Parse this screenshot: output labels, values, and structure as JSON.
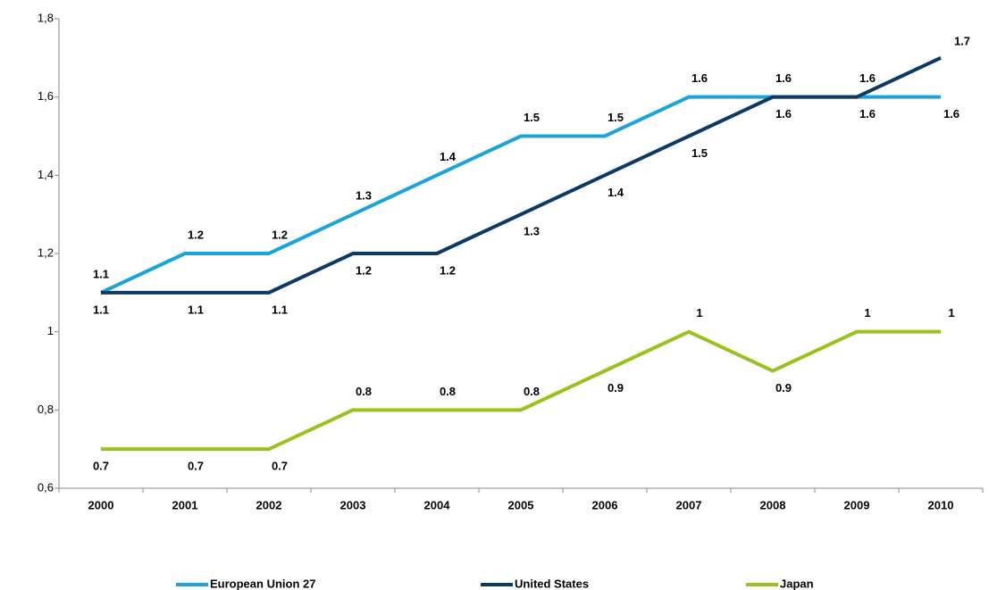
{
  "chart_data": {
    "type": "line",
    "categories": [
      "2000",
      "2001",
      "2002",
      "2003",
      "2004",
      "2005",
      "2006",
      "2007",
      "2008",
      "2009",
      "2010"
    ],
    "series": [
      {
        "name": "European Union 27",
        "color": "#1aa3dc",
        "values": [
          1.1,
          1.2,
          1.2,
          1.3,
          1.4,
          1.5,
          1.5,
          1.6,
          1.6,
          1.6,
          1.6
        ]
      },
      {
        "name": "United States",
        "color": "#0b3a66",
        "values": [
          1.1,
          1.1,
          1.1,
          1.2,
          1.2,
          1.3,
          1.4,
          1.5,
          1.6,
          1.6,
          1.7
        ]
      },
      {
        "name": "Japan",
        "color": "#99c31c",
        "values": [
          0.7,
          0.7,
          0.7,
          0.8,
          0.8,
          0.8,
          0.9,
          1,
          0.9,
          1,
          1
        ]
      }
    ],
    "ylim": [
      0.6,
      1.8
    ],
    "yticks": [
      {
        "value": 0.6,
        "label": "0,6"
      },
      {
        "value": 0.8,
        "label": "0,8"
      },
      1,
      {
        "value": 1.2,
        "label": "1,2"
      },
      {
        "value": 1.4,
        "label": "1,4"
      },
      {
        "value": 1.6,
        "label": "1,6"
      },
      {
        "value": 1.8,
        "label": "1,8"
      }
    ],
    "grid": false,
    "legend": "bottom"
  }
}
